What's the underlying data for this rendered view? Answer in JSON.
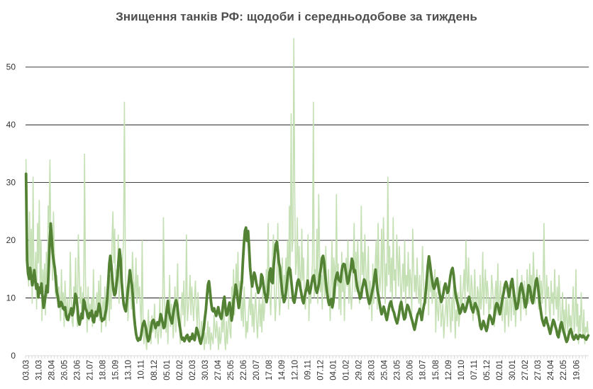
{
  "chart_data": {
    "type": "line",
    "title": "Знищення танків РФ: щодоби і середньодобове за тиждень",
    "xlabel": "",
    "ylabel": "",
    "ylim": [
      0,
      55
    ],
    "yticks": [
      0,
      10,
      20,
      30,
      40,
      50
    ],
    "grid": "horizontal",
    "legend": "none",
    "colors": {
      "daily": "#c5e0b4",
      "weekly": "#548235",
      "grid": "#000000",
      "title": "#4d4d4d"
    },
    "x_date_labels": [
      "03.03",
      "31.03",
      "28.04",
      "26.05",
      "23.06",
      "21.07",
      "18.08",
      "15.09",
      "13.10",
      "10.11",
      "08.12",
      "05.01",
      "02.02",
      "02.03",
      "30.03",
      "27.04",
      "25.05",
      "22.06",
      "20.07",
      "17.08",
      "14.09",
      "12.10",
      "09.11",
      "07.12",
      "04.01",
      "01.02",
      "29.02",
      "28.03",
      "25.04",
      "23.05",
      "20.06",
      "18.07",
      "15.08",
      "12.09",
      "10.10",
      "07.11",
      "05.12",
      "02.01",
      "30.01",
      "27.02",
      "27.03",
      "24.04",
      "22.05",
      "19.06"
    ],
    "days_per_label": 28,
    "series": [
      {
        "key": "daily",
        "daily_values": [
          34,
          15,
          17,
          12,
          25,
          14,
          22,
          9,
          31,
          12,
          13,
          18,
          8,
          23,
          16,
          27,
          12,
          20,
          6,
          15,
          11,
          16,
          7,
          18,
          10,
          26,
          22,
          34,
          20,
          19,
          13,
          25,
          18,
          11,
          10,
          14,
          9,
          12,
          10,
          6,
          15,
          8,
          11,
          5,
          13,
          9,
          7,
          10,
          6,
          8,
          18,
          10,
          6,
          5,
          12,
          8,
          17,
          9,
          5,
          21,
          15,
          9,
          12,
          6,
          11,
          8,
          35,
          14,
          8,
          4,
          12,
          6,
          9,
          7,
          10,
          5,
          15,
          8,
          6,
          9,
          11,
          7,
          13,
          6,
          14,
          4,
          8,
          10,
          6,
          12,
          5,
          7,
          9,
          11,
          6,
          14,
          8,
          20,
          25,
          16,
          22,
          10,
          15,
          12,
          21,
          9,
          18,
          14,
          12,
          17,
          20,
          44,
          16,
          9,
          12,
          6,
          10,
          15,
          11,
          8,
          18,
          14,
          12,
          10,
          17,
          9,
          14,
          10,
          12,
          8,
          5,
          20,
          6,
          2,
          5,
          3,
          1,
          4,
          8,
          3,
          6,
          2,
          7,
          4,
          5,
          9,
          3,
          6,
          4,
          2,
          5,
          10,
          3,
          5,
          7,
          24,
          11,
          6,
          4,
          9,
          2,
          8,
          14,
          5,
          9,
          7,
          3,
          6,
          12,
          4,
          9,
          16,
          5,
          6,
          2,
          8,
          11,
          7,
          13,
          5,
          9,
          21,
          6,
          8,
          10,
          14,
          7,
          12,
          9,
          6,
          10,
          13,
          8,
          5,
          11,
          7,
          2,
          4,
          6,
          3,
          5,
          1,
          4,
          2,
          3,
          6,
          2,
          5,
          1,
          4,
          3,
          2,
          7,
          5,
          3,
          6,
          4,
          1,
          5,
          2,
          3,
          8,
          4,
          9,
          3,
          1,
          6,
          2,
          5,
          8,
          4,
          3,
          12,
          9,
          15,
          7,
          11,
          16,
          10,
          18,
          8,
          13,
          9,
          6,
          10,
          5,
          12,
          8,
          3,
          6,
          4,
          8,
          10,
          7,
          13,
          5,
          9,
          4,
          8,
          11,
          6,
          3,
          7,
          10,
          5,
          9,
          4,
          12,
          6,
          8,
          11,
          15,
          9,
          23,
          14,
          10,
          7,
          13,
          18,
          21,
          12,
          6,
          9,
          15,
          23,
          11,
          7,
          10,
          13,
          17,
          9,
          14,
          11,
          17,
          13,
          20,
          8,
          26,
          15,
          42,
          18,
          20,
          55,
          28,
          14,
          16,
          24,
          12,
          19,
          14,
          10,
          22,
          13,
          17,
          10,
          8,
          11,
          14,
          21,
          6,
          12,
          9,
          13,
          16,
          44,
          10,
          15,
          12,
          22,
          9,
          28,
          18,
          11,
          14,
          8,
          16,
          13,
          10,
          19,
          12,
          9,
          15,
          11,
          6,
          13,
          20,
          8,
          17,
          15,
          10,
          28,
          12,
          16,
          8,
          14,
          7,
          18,
          11,
          15,
          6,
          13,
          17,
          12,
          20,
          9,
          14,
          10,
          8,
          12,
          16,
          23,
          11,
          18,
          13,
          20,
          15,
          9,
          11,
          26,
          14,
          18,
          12,
          21,
          16,
          10,
          14,
          19,
          8,
          13,
          11,
          6,
          16,
          9,
          12,
          17,
          20,
          8,
          23,
          15,
          11,
          14,
          22,
          10,
          24,
          18,
          9,
          16,
          12,
          31,
          14,
          19,
          11,
          17,
          9,
          24,
          13,
          15,
          10,
          21,
          17,
          12,
          19,
          14,
          8,
          13,
          16,
          11,
          20,
          9,
          14,
          12,
          18,
          10,
          15,
          13,
          7,
          22,
          16,
          11,
          14,
          10,
          17,
          12,
          9,
          14,
          6,
          12,
          19,
          14,
          8,
          11,
          9,
          15,
          13,
          7,
          17,
          11,
          14,
          9,
          12,
          10,
          15,
          4,
          11,
          8,
          6,
          10,
          13,
          5,
          7,
          9,
          3,
          6,
          8,
          11,
          5,
          9,
          13,
          7,
          4,
          10,
          6,
          12,
          9,
          3,
          8,
          6,
          11,
          5,
          7,
          14,
          8,
          10,
          12,
          15,
          9,
          20,
          13,
          11,
          17,
          10,
          8,
          14,
          12,
          6,
          10,
          15,
          9,
          7,
          12,
          11,
          5,
          14,
          8,
          10,
          18,
          7,
          12,
          15,
          9,
          13,
          11,
          6,
          10,
          8,
          14,
          12,
          9,
          5,
          11,
          13,
          7,
          16,
          8,
          10,
          13,
          9,
          6,
          12,
          8,
          4,
          10,
          7,
          11,
          5,
          8,
          13,
          6,
          9,
          12,
          7,
          10,
          5,
          9,
          15,
          8,
          12,
          10,
          6,
          14,
          11,
          8,
          13,
          10,
          7,
          15,
          12,
          9,
          16,
          11,
          14,
          10,
          18,
          13,
          9,
          12,
          15,
          11,
          8,
          14,
          10,
          13,
          9,
          12,
          23,
          11,
          7,
          14,
          10,
          12,
          8,
          6,
          13,
          9,
          11,
          7,
          15,
          10,
          8,
          12,
          6,
          14,
          9,
          4,
          7,
          11,
          5,
          8,
          3,
          10,
          6,
          4,
          9,
          5,
          7,
          3,
          8,
          12,
          4,
          6,
          15,
          5,
          9,
          2,
          7,
          4,
          11,
          6,
          3,
          8,
          2,
          5,
          4,
          6,
          3
        ]
      },
      {
        "key": "weekly",
        "weekly_values": [
          31.5,
          16.5,
          14.2,
          13.3,
          15.2,
          13.8,
          12.2,
          13.0,
          14.8,
          13.2,
          11.6,
          12.4,
          10.1,
          11.8,
          10.9,
          12.5,
          10.4,
          8.3,
          9.2,
          10.7,
          12.1,
          11.0,
          14.8,
          19.6,
          22.9,
          20.4,
          17.7,
          16.3,
          15.1,
          13.0,
          11.0,
          10.2,
          8.5,
          8.6,
          9.3,
          9.0,
          8.2,
          8.0,
          8.4,
          7.0,
          6.3,
          6.2,
          7.1,
          7.4,
          8.2,
          7.0,
          7.6,
          9.1,
          10.7,
          10.1,
          8.4,
          6.2,
          5.4,
          6.4,
          7.3,
          6.5,
          9.7,
          9.2,
          8.1,
          7.7,
          6.8,
          6.5,
          7.4,
          6.9,
          7.8,
          6.1,
          5.8,
          7.0,
          7.6,
          6.9,
          7.9,
          9.0,
          8.2,
          6.7,
          6.0,
          6.4,
          6.3,
          7.2,
          8.0,
          10.0,
          12.6,
          15.9,
          17.3,
          15.6,
          13.2,
          11.4,
          10.5,
          10.8,
          12.4,
          13.9,
          16.4,
          18.4,
          16.8,
          12.8,
          10.7,
          8.9,
          8.2,
          7.7,
          9.3,
          11.2,
          12.9,
          14.8,
          13.5,
          12.3,
          10.2,
          7.1,
          5.3,
          3.8,
          3.0,
          2.6,
          3.0,
          2.8,
          3.6,
          4.9,
          5.6,
          6.0,
          5.2,
          4.4,
          3.2,
          2.5,
          3.0,
          4.1,
          5.2,
          6.0,
          6.2,
          5.6,
          4.8,
          5.3,
          5.8,
          5.3,
          6.1,
          7.2,
          6.5,
          5.6,
          4.8,
          5.1,
          6.7,
          8.1,
          9.5,
          7.6,
          6.8,
          6.1,
          5.6,
          7.0,
          8.2,
          9.1,
          9.6,
          8.9,
          7.2,
          5.8,
          4.6,
          3.3,
          2.8,
          3.1,
          2.5,
          2.9,
          3.4,
          3.6,
          2.8,
          2.5,
          3.2,
          2.9,
          3.8,
          3.2,
          2.7,
          3.6,
          4.8,
          4.2,
          3.5,
          2.6,
          2.1,
          2.9,
          3.6,
          4.8,
          6.5,
          8.0,
          10.2,
          12.3,
          12.9,
          11.2,
          9.3,
          8.0,
          7.7,
          8.2,
          7.5,
          6.9,
          7.6,
          8.4,
          7.4,
          6.8,
          6.4,
          7.7,
          9.3,
          10.2,
          8.4,
          7.0,
          7.2,
          8.5,
          9.2,
          8.0,
          6.1,
          7.3,
          9.8,
          10.7,
          12.3,
          11.2,
          9.6,
          8.3,
          9.4,
          11.2,
          12.8,
          16.3,
          19.4,
          21.6,
          22.2,
          19.9,
          21.6,
          18.9,
          15.3,
          13.5,
          12.0,
          13.4,
          14.4,
          13.8,
          12.6,
          11.8,
          10.9,
          11.5,
          12.0,
          14.1,
          13.6,
          12.2,
          11.0,
          10.3,
          9.3,
          10.4,
          12.6,
          14.5,
          15.1,
          12.8,
          12.6,
          15.6,
          17.7,
          19.3,
          19.7,
          18.1,
          16.1,
          15.3,
          13.2,
          11.4,
          10.2,
          9.3,
          9.8,
          11.2,
          12.8,
          14.5,
          15.2,
          14.9,
          13.1,
          11.3,
          9.6,
          9.2,
          10.1,
          11.4,
          12.7,
          13.2,
          12.7,
          11.6,
          10.7,
          9.6,
          9.1,
          10.2,
          11.0,
          11.8,
          13.0,
          11.3,
          10.8,
          11.6,
          12.7,
          13.6,
          13.9,
          12.6,
          11.5,
          10.9,
          11.6,
          12.5,
          14.1,
          15.4,
          16.9,
          17.3,
          16.2,
          14.1,
          12.2,
          10.8,
          9.6,
          8.8,
          9.6,
          9.8,
          8.4,
          9.3,
          11.5,
          13.1,
          13.9,
          14.4,
          13.2,
          13.0,
          12.8,
          14.5,
          15.6,
          15.9,
          15.8,
          14.7,
          13.6,
          12.5,
          13.0,
          14.2,
          15.1,
          16.8,
          16.2,
          14.5,
          14.8,
          13.5,
          12.1,
          11.3,
          10.8,
          9.9,
          10.2,
          11.6,
          12.4,
          13.2,
          12.8,
          11.9,
          10.6,
          9.8,
          9.0,
          9.6,
          10.5,
          11.3,
          12.2,
          13.5,
          14.9,
          13.0,
          11.2,
          10.3,
          9.1,
          8.0,
          7.2,
          7.8,
          8.5,
          7.8,
          6.9,
          6.2,
          7.1,
          8.2,
          9.0,
          9.4,
          8.6,
          7.9,
          7.5,
          6.7,
          6.1,
          5.6,
          6.3,
          7.4,
          8.6,
          9.3,
          8.2,
          7.1,
          6.3,
          6.6,
          7.9,
          8.8,
          8.5,
          7.8,
          7.2,
          6.5,
          5.9,
          5.1,
          4.5,
          5.4,
          6.3,
          7.2,
          7.5,
          8.1,
          7.2,
          6.2,
          7.5,
          8.6,
          9.3,
          11.2,
          13.4,
          15.6,
          17.2,
          16.0,
          14.5,
          13.3,
          12.1,
          11.6,
          12.1,
          13.0,
          13.4,
          12.2,
          11.0,
          10.2,
          9.3,
          9.9,
          10.8,
          11.9,
          12.5,
          11.8,
          10.9,
          11.2,
          12.6,
          13.9,
          14.8,
          15.2,
          14.0,
          12.1,
          10.6,
          9.8,
          9.0,
          8.2,
          7.3,
          7.6,
          8.4,
          8.9,
          8.2,
          7.6,
          8.1,
          8.8,
          9.6,
          10.2,
          9.5,
          8.6,
          8.0,
          7.5,
          8.4,
          9.1,
          8.7,
          8.2,
          7.6,
          6.4,
          5.2,
          4.6,
          5.2,
          6.0,
          5.5,
          4.8,
          4.3,
          5.0,
          6.2,
          7.0,
          6.7,
          6.2,
          5.5,
          6.0,
          7.4,
          8.6,
          9.1,
          8.8,
          8.0,
          7.2,
          8.1,
          9.4,
          10.3,
          11.2,
          12.3,
          12.8,
          12.2,
          11.1,
          10.2,
          11.5,
          12.6,
          13.3,
          11.8,
          10.3,
          9.2,
          8.1,
          8.3,
          9.4,
          10.7,
          11.8,
          12.5,
          11.6,
          10.6,
          9.3,
          8.4,
          9.1,
          10.8,
          12.2,
          11.9,
          11.0,
          9.6,
          9.1,
          10.2,
          11.6,
          12.9,
          13.4,
          12.1,
          10.6,
          8.9,
          7.6,
          6.4,
          5.8,
          5.2,
          6.0,
          6.6,
          5.8,
          5.2,
          4.5,
          3.8,
          4.6,
          5.5,
          6.2,
          5.8,
          5.1,
          4.5,
          3.6,
          3.2,
          4.2,
          5.3,
          5.8,
          5.0,
          4.2,
          3.6,
          2.9,
          2.4,
          2.8,
          3.6,
          4.2,
          4.6,
          4.0,
          3.2,
          2.8,
          3.1,
          3.6,
          3.3,
          2.9,
          3.3,
          3.6,
          3.4,
          3.2,
          3.5,
          3.3,
          3.0,
          2.8,
          3.2,
          3.5
        ]
      }
    ]
  }
}
